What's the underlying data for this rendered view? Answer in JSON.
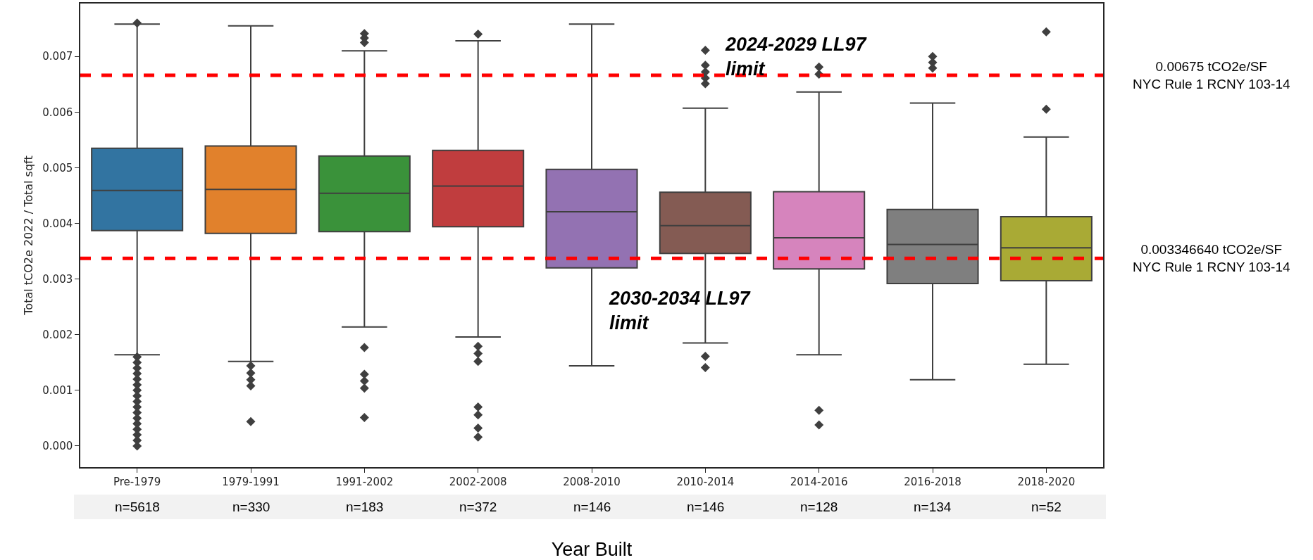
{
  "chart_data": {
    "type": "box",
    "xlabel": "Year Built",
    "ylabel": "Total tCO2e 2022 / Total sqft",
    "categories": [
      "Pre-1979",
      "1979-1991",
      "1991-2002",
      "2002-2008",
      "2008-2010",
      "2010-2014",
      "2014-2016",
      "2016-2018",
      "2018-2020"
    ],
    "colors": [
      "#3274a1",
      "#e1812c",
      "#3a923a",
      "#c03d3e",
      "#9372b2",
      "#845b53",
      "#d684bd",
      "#7f7f7f",
      "#a9aa35"
    ],
    "boxes": [
      {
        "low": 0.00164,
        "q1": 0.00387,
        "median": 0.00459,
        "q3": 0.00535,
        "high": 0.00758,
        "outliers": [
          0.0076,
          0.0016,
          0.0015,
          0.0014,
          0.0013,
          0.0012,
          0.0011,
          0.001,
          0.0009,
          0.0008,
          0.0007,
          0.0006,
          0.0005,
          0.0004,
          0.0003,
          0.0002,
          0.0001,
          0.0
        ]
      },
      {
        "low": 0.00152,
        "q1": 0.00382,
        "median": 0.00461,
        "q3": 0.00539,
        "high": 0.00755,
        "outliers": [
          0.00144,
          0.00131,
          0.00119,
          0.00108,
          0.00044
        ]
      },
      {
        "low": 0.00214,
        "q1": 0.00385,
        "median": 0.00454,
        "q3": 0.00521,
        "high": 0.0071,
        "outliers": [
          0.00741,
          0.00733,
          0.00725,
          0.00177,
          0.00129,
          0.00117,
          0.00104,
          0.00051
        ]
      },
      {
        "low": 0.00196,
        "q1": 0.00394,
        "median": 0.00467,
        "q3": 0.00531,
        "high": 0.00728,
        "outliers": [
          0.0074,
          0.00179,
          0.00166,
          0.00152,
          0.0007,
          0.00056,
          0.00032,
          0.00016
        ]
      },
      {
        "low": 0.00144,
        "q1": 0.0032,
        "median": 0.00421,
        "q3": 0.00497,
        "high": 0.00758
      },
      {
        "low": 0.00185,
        "q1": 0.00346,
        "median": 0.00396,
        "q3": 0.00456,
        "high": 0.00607,
        "outliers": [
          0.00711,
          0.00684,
          0.00672,
          0.00661,
          0.00651,
          0.00161,
          0.00141
        ]
      },
      {
        "low": 0.00164,
        "q1": 0.00318,
        "median": 0.00374,
        "q3": 0.00457,
        "high": 0.00636,
        "outliers": [
          0.00681,
          0.00668,
          0.00064,
          0.00038
        ]
      },
      {
        "low": 0.00119,
        "q1": 0.00292,
        "median": 0.00362,
        "q3": 0.00425,
        "high": 0.00616,
        "outliers": [
          0.007,
          0.00689,
          0.00679
        ]
      },
      {
        "low": 0.00147,
        "q1": 0.00297,
        "median": 0.00356,
        "q3": 0.00412,
        "high": 0.00555,
        "outliers": [
          0.00744,
          0.00605
        ]
      }
    ],
    "ylim": [
      -0.00038,
      0.00795
    ],
    "yticks": [
      {
        "value": 0,
        "label": "0.000"
      },
      {
        "value": 0.001,
        "label": "0.001"
      },
      {
        "value": 0.002,
        "label": "0.002"
      },
      {
        "value": 0.003,
        "label": "0.003"
      },
      {
        "value": 0.004,
        "label": "0.004"
      },
      {
        "value": 0.005,
        "label": "0.005"
      },
      {
        "value": 0.006,
        "label": "0.006"
      },
      {
        "value": 0.007,
        "label": "0.007"
      }
    ],
    "grid": false,
    "marker": "diamond",
    "ref_lines": [
      {
        "axis": "y",
        "value": 0.00666,
        "label": "0.00675 tCO2e/SF\nNYC Rule 1 RCNY 103-14",
        "color": "#ff0000",
        "line_style": "dashed"
      },
      {
        "axis": "y",
        "value": 0.00337,
        "label": "0.003346640 tCO2e/SF\nNYC Rule 1 RCNY 103-14",
        "color": "#ff0000",
        "line_style": "dashed"
      }
    ],
    "annotations": [
      "2024-2029 LL97\nlimit",
      "2030-2034 LL97\nlimit",
      "n=5618",
      "n=330",
      "n=183",
      "n=372",
      "n=146",
      "n=146",
      "n=128",
      "n=134",
      "n=52"
    ]
  }
}
